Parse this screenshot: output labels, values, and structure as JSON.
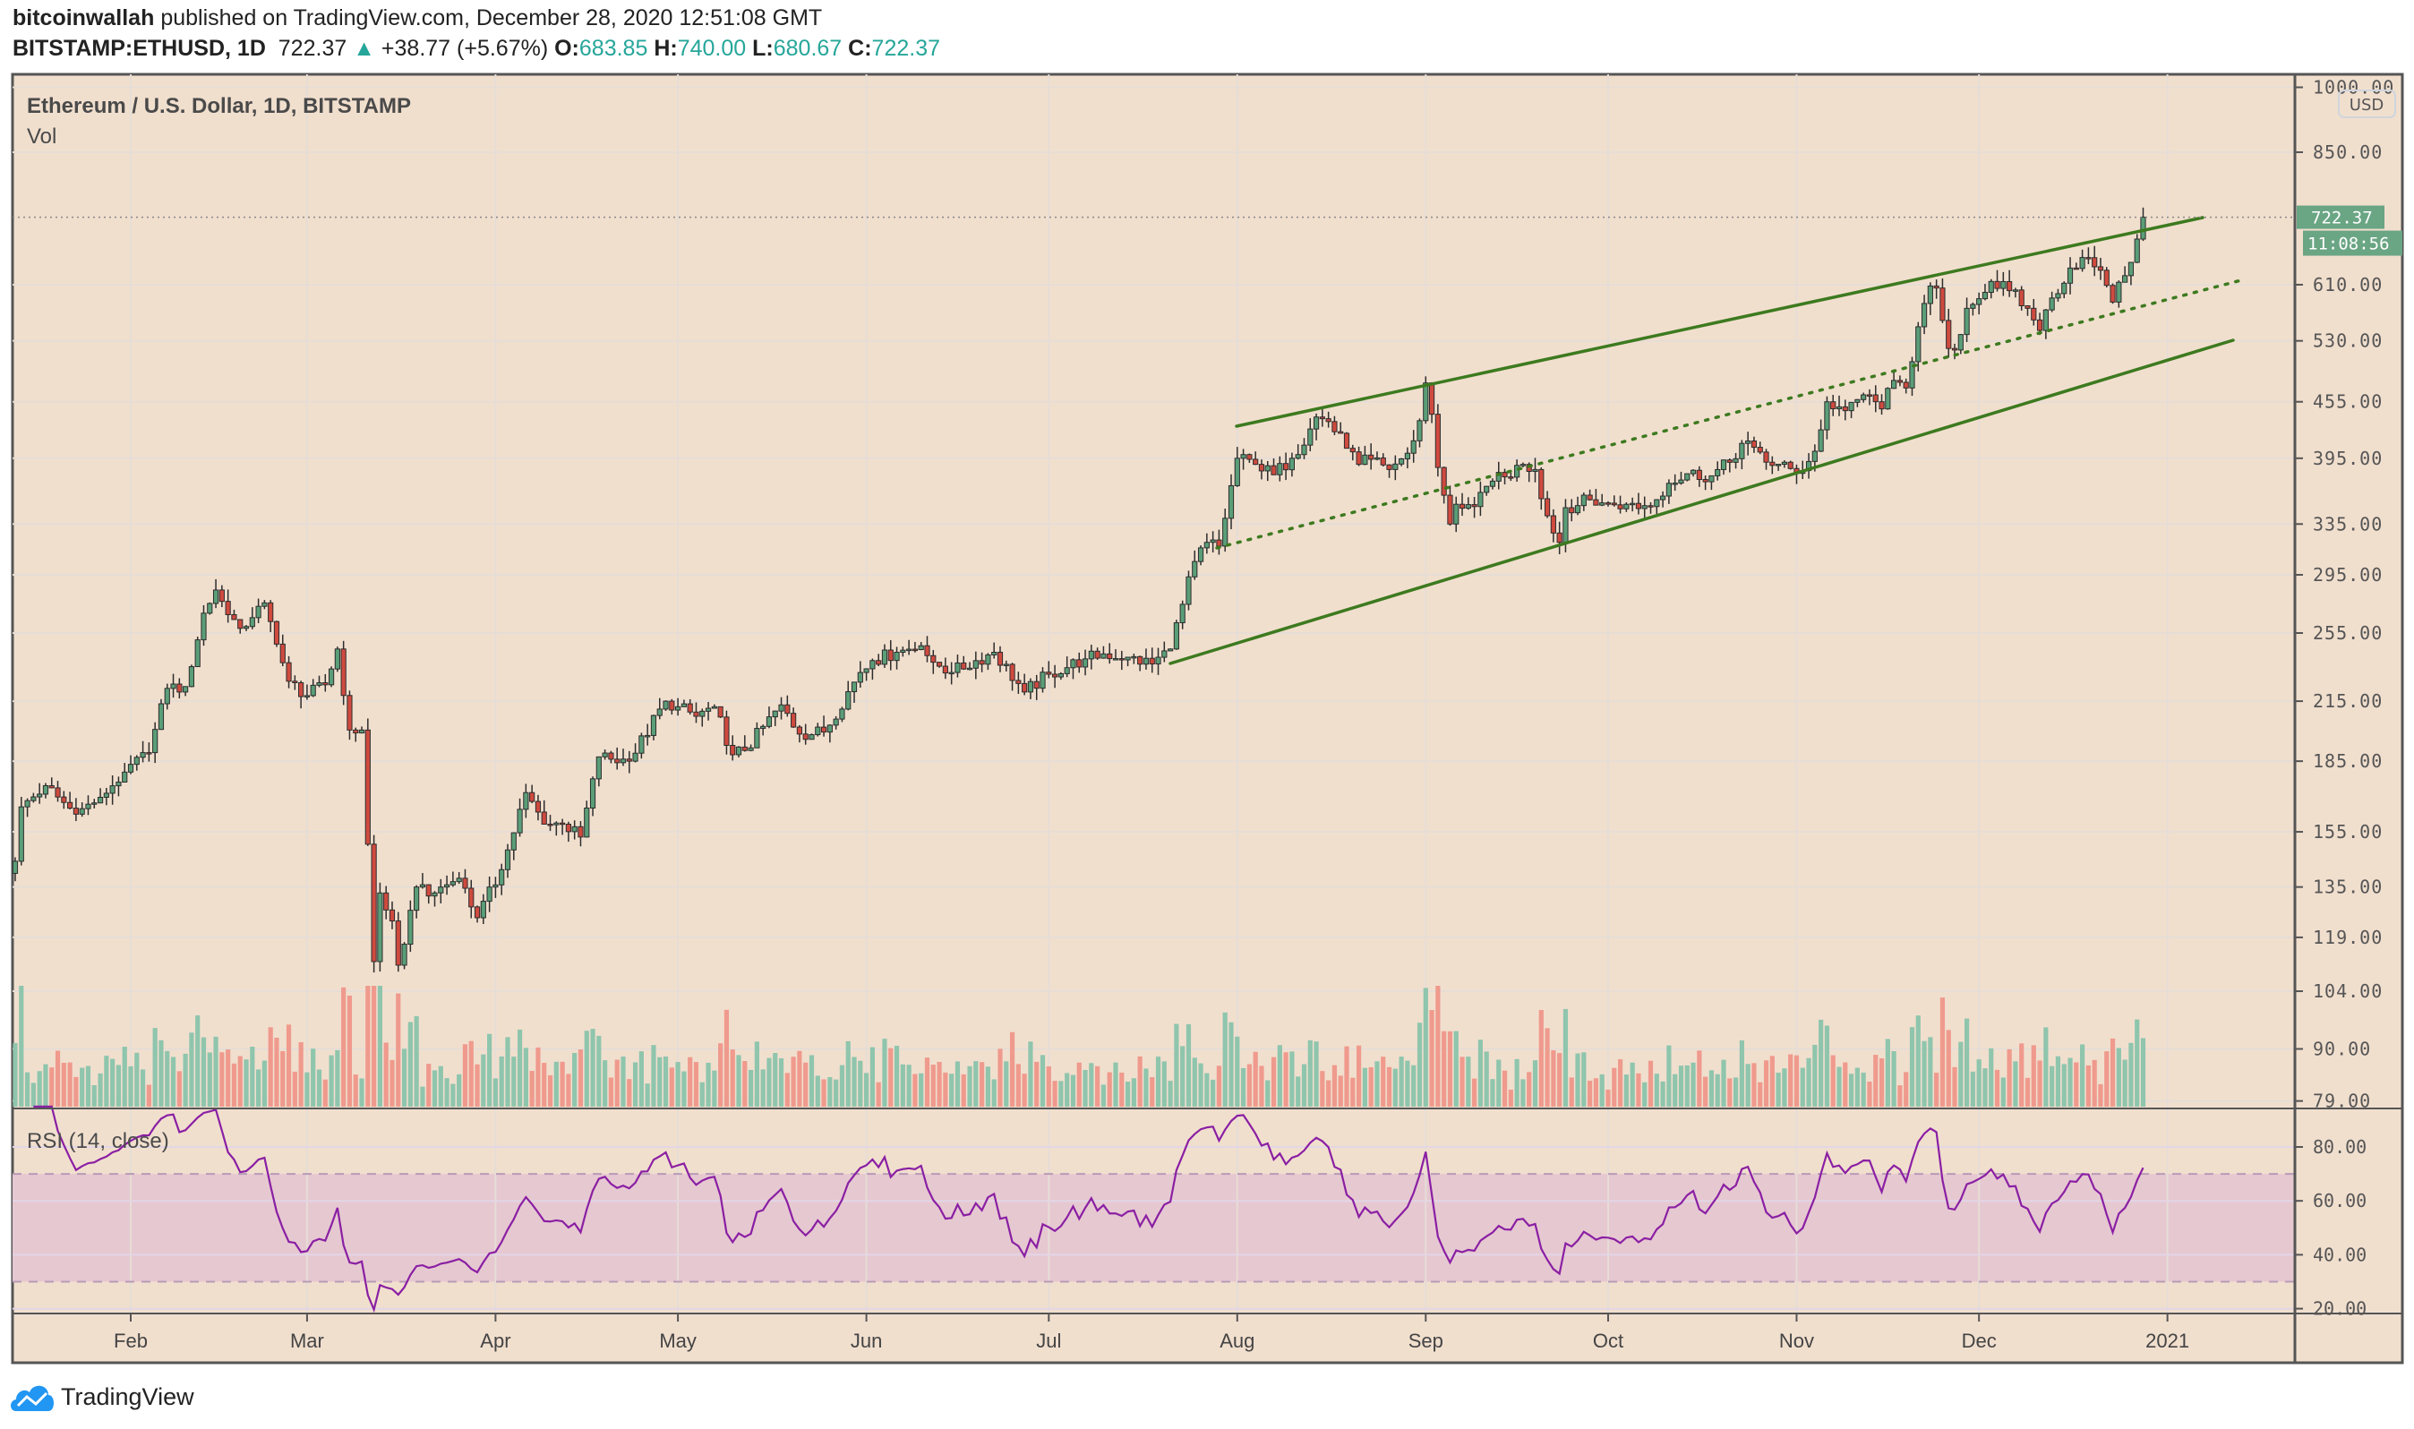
{
  "header": {
    "author": "bitcoinwallah",
    "published_text": "published on TradingView.com, December 28, 2020 12:51:08 GMT",
    "symbol": "BITSTAMP:ETHUSD, 1D",
    "last": "722.37",
    "change": "+38.77 (+5.67%)",
    "o_label": "O:",
    "o": "683.85",
    "h_label": "H:",
    "h": "740.00",
    "l_label": "L:",
    "l": "680.67",
    "c_label": "C:",
    "c": "722.37"
  },
  "colors": {
    "background": "#f1dfce",
    "up": "#5a9e78",
    "down": "#cf4a3f",
    "trendline": "#3d7a1f",
    "rsi_line": "#8a1fa3",
    "rsi_band": "#e6c8d1",
    "price_label": "#6aa584",
    "accent": "#26a69a"
  },
  "chart_data": {
    "type": "candlestick",
    "title": "Ethereum / U.S. Dollar, 1D, BITSTAMP",
    "volume_label": "Vol",
    "currency": "USD",
    "y_scale": "log",
    "ylim": [
      79,
      1000
    ],
    "y_ticks": [
      "1000.00",
      "850.00",
      "610.00",
      "530.00",
      "455.00",
      "395.00",
      "335.00",
      "295.00",
      "255.00",
      "215.00",
      "185.00",
      "155.00",
      "135.00",
      "119.00",
      "104.00",
      "90.00",
      "79.00"
    ],
    "x_ticks": [
      "Feb",
      "Mar",
      "Apr",
      "May",
      "Jun",
      "Jul",
      "Aug",
      "Sep",
      "Oct",
      "Nov",
      "Dec",
      "2021"
    ],
    "last_price_label": "722.37",
    "countdown_label": "11:08:56",
    "grid": true,
    "close_waypoints": [
      [
        "2020-01-13",
        144
      ],
      [
        "2020-01-14",
        165
      ],
      [
        "2020-01-18",
        174
      ],
      [
        "2020-01-23",
        162
      ],
      [
        "2020-01-27",
        169
      ],
      [
        "2020-01-31",
        180
      ],
      [
        "2020-02-04",
        189
      ],
      [
        "2020-02-07",
        222
      ],
      [
        "2020-02-10",
        223
      ],
      [
        "2020-02-13",
        268
      ],
      [
        "2020-02-15",
        284
      ],
      [
        "2020-02-17",
        267
      ],
      [
        "2020-02-19",
        258
      ],
      [
        "2020-02-21",
        265
      ],
      [
        "2020-02-23",
        275
      ],
      [
        "2020-02-25",
        248
      ],
      [
        "2020-02-27",
        226
      ],
      [
        "2020-03-01",
        218
      ],
      [
        "2020-03-04",
        224
      ],
      [
        "2020-03-06",
        245
      ],
      [
        "2020-03-08",
        200
      ],
      [
        "2020-03-10",
        200
      ],
      [
        "2020-03-12",
        112
      ],
      [
        "2020-03-13",
        133
      ],
      [
        "2020-03-15",
        124
      ],
      [
        "2020-03-16",
        111
      ],
      [
        "2020-03-19",
        135
      ],
      [
        "2020-03-21",
        132
      ],
      [
        "2020-03-23",
        135
      ],
      [
        "2020-03-26",
        138
      ],
      [
        "2020-03-29",
        125
      ],
      [
        "2020-04-02",
        141
      ],
      [
        "2020-04-06",
        171
      ],
      [
        "2020-04-09",
        158
      ],
      [
        "2020-04-12",
        158
      ],
      [
        "2020-04-15",
        153
      ],
      [
        "2020-04-18",
        187
      ],
      [
        "2020-04-23",
        185
      ],
      [
        "2020-04-29",
        215
      ],
      [
        "2020-05-01",
        212
      ],
      [
        "2020-05-04",
        207
      ],
      [
        "2020-05-07",
        212
      ],
      [
        "2020-05-10",
        188
      ],
      [
        "2020-05-12",
        190
      ],
      [
        "2020-05-18",
        213
      ],
      [
        "2020-05-21",
        198
      ],
      [
        "2020-05-25",
        199
      ],
      [
        "2020-05-31",
        231
      ],
      [
        "2020-06-02",
        238
      ],
      [
        "2020-06-06",
        243
      ],
      [
        "2020-06-10",
        247
      ],
      [
        "2020-06-12",
        237
      ],
      [
        "2020-06-15",
        231
      ],
      [
        "2020-06-22",
        243
      ],
      [
        "2020-06-27",
        220
      ],
      [
        "2020-07-01",
        230
      ],
      [
        "2020-07-07",
        239
      ],
      [
        "2020-07-10",
        242
      ],
      [
        "2020-07-14",
        240
      ],
      [
        "2020-07-18",
        236
      ],
      [
        "2020-07-21",
        245
      ],
      [
        "2020-07-23",
        274
      ],
      [
        "2020-07-25",
        305
      ],
      [
        "2020-07-27",
        320
      ],
      [
        "2020-07-29",
        317
      ],
      [
        "2020-08-01",
        395
      ],
      [
        "2020-08-04",
        389
      ],
      [
        "2020-08-07",
        379
      ],
      [
        "2020-08-10",
        395
      ],
      [
        "2020-08-13",
        425
      ],
      [
        "2020-08-14",
        438
      ],
      [
        "2020-08-16",
        433
      ],
      [
        "2020-08-19",
        405
      ],
      [
        "2020-08-21",
        389
      ],
      [
        "2020-08-23",
        394
      ],
      [
        "2020-08-26",
        384
      ],
      [
        "2020-08-29",
        400
      ],
      [
        "2020-08-31",
        434
      ],
      [
        "2020-09-01",
        477
      ],
      [
        "2020-09-02",
        441
      ],
      [
        "2020-09-03",
        386
      ],
      [
        "2020-09-05",
        335
      ],
      [
        "2020-09-06",
        352
      ],
      [
        "2020-09-09",
        350
      ],
      [
        "2020-09-12",
        373
      ],
      [
        "2020-09-14",
        377
      ],
      [
        "2020-09-17",
        389
      ],
      [
        "2020-09-19",
        384
      ],
      [
        "2020-09-21",
        342
      ],
      [
        "2020-09-23",
        320
      ],
      [
        "2020-09-24",
        349
      ],
      [
        "2020-09-28",
        356
      ],
      [
        "2020-10-01",
        353
      ],
      [
        "2020-10-04",
        352
      ],
      [
        "2020-10-08",
        350
      ],
      [
        "2020-10-11",
        371
      ],
      [
        "2020-10-14",
        380
      ],
      [
        "2020-10-18",
        378
      ],
      [
        "2020-10-21",
        391
      ],
      [
        "2020-10-23",
        410
      ],
      [
        "2020-10-25",
        406
      ],
      [
        "2020-10-28",
        388
      ],
      [
        "2020-10-31",
        385
      ],
      [
        "2020-11-02",
        383
      ],
      [
        "2020-11-04",
        402
      ],
      [
        "2020-11-06",
        455
      ],
      [
        "2020-11-09",
        445
      ],
      [
        "2020-11-12",
        463
      ],
      [
        "2020-11-15",
        447
      ],
      [
        "2020-11-17",
        480
      ],
      [
        "2020-11-19",
        471
      ],
      [
        "2020-11-21",
        549
      ],
      [
        "2020-11-23",
        608
      ],
      [
        "2020-11-24",
        605
      ],
      [
        "2020-11-26",
        520
      ],
      [
        "2020-11-27",
        518
      ],
      [
        "2020-11-29",
        575
      ],
      [
        "2020-12-01",
        589
      ],
      [
        "2020-12-03",
        615
      ],
      [
        "2020-12-06",
        601
      ],
      [
        "2020-12-09",
        575
      ],
      [
        "2020-12-11",
        544
      ],
      [
        "2020-12-13",
        590
      ],
      [
        "2020-12-16",
        636
      ],
      [
        "2020-12-18",
        653
      ],
      [
        "2020-12-20",
        638
      ],
      [
        "2020-12-22",
        609
      ],
      [
        "2020-12-23",
        584
      ],
      [
        "2020-12-25",
        624
      ],
      [
        "2020-12-27",
        683.85
      ]
    ],
    "last_candle": {
      "date": "2020-12-28",
      "open": 683.85,
      "high": 740.0,
      "low": 680.67,
      "close": 722.37
    },
    "rsi": {
      "label": "RSI (14, close)",
      "period": 14,
      "upper_band": 70,
      "lower_band": 30,
      "ticks": [
        "80.00",
        "60.00",
        "40.00",
        "20.00"
      ]
    }
  },
  "footer": {
    "brand": "TradingView"
  }
}
